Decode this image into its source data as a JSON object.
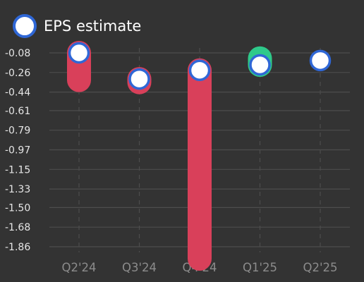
{
  "chart_data": {
    "type": "scatter",
    "legend": {
      "label": "EPS estimate",
      "position": "top-left"
    },
    "categories": [
      "Q2'24",
      "Q3'24",
      "Q4'24",
      "Q1'25",
      "Q2'25"
    ],
    "yticks": [
      "-0.08",
      "-0.26",
      "-0.44",
      "-0.61",
      "-0.79",
      "-0.97",
      "-1.15",
      "-1.33",
      "-1.50",
      "-1.68",
      "-1.86"
    ],
    "ylim": [
      -1.86,
      -0.08
    ],
    "grid": true,
    "series": [
      {
        "name": "EPS estimate",
        "values": [
          -0.08,
          -0.32,
          -0.24,
          -0.19,
          -0.15
        ]
      }
    ],
    "actual": [
      -0.33,
      -0.35,
      -1.97,
      -0.13,
      null
    ],
    "colors": {
      "background": "#333333",
      "estimate_fill": "#ffffff",
      "estimate_stroke": "#2f67d6",
      "miss": "#d9405a",
      "beat": "#2ec98a",
      "grid": "#4d4d4d"
    }
  }
}
